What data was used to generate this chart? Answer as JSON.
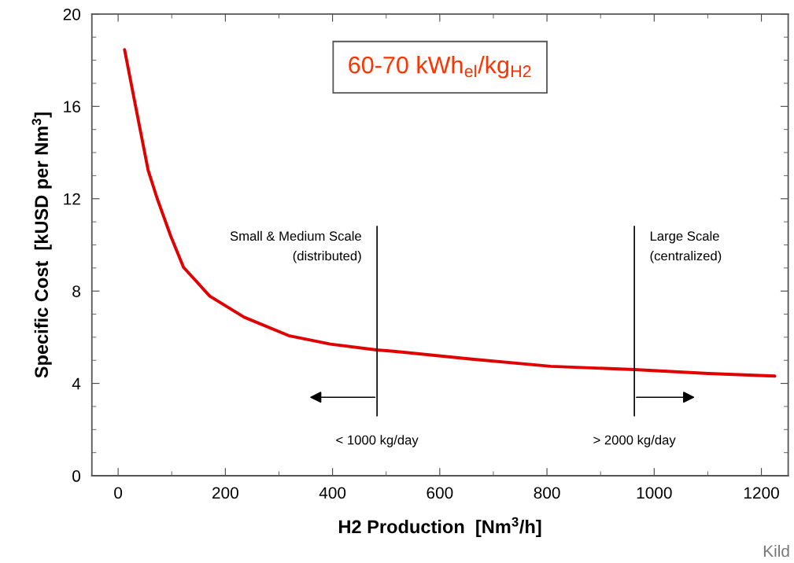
{
  "chart_data": {
    "type": "line",
    "xlabel": "H2 Production  [Nm$^{3}$/h]",
    "ylabel": "Specific Cost  [kUSD per Nm$^{3}$]",
    "x": [
      12,
      34,
      56,
      73,
      98,
      122,
      171,
      235,
      318,
      396,
      482,
      514,
      660,
      807,
      963,
      1101,
      1225
    ],
    "series": [
      {
        "color": "#e00000",
        "values": [
          18.46,
          15.84,
          13.23,
          12.0,
          10.39,
          9.03,
          7.78,
          6.87,
          6.07,
          5.7,
          5.45,
          5.39,
          5.05,
          4.74,
          4.6,
          4.43,
          4.32
        ]
      }
    ],
    "xlim": [
      -49,
      1250
    ],
    "ylim": [
      0,
      20
    ],
    "xticks": [
      0,
      200,
      400,
      600,
      800,
      1000,
      1200
    ],
    "yticks": [
      0,
      4,
      8,
      12,
      16,
      20
    ],
    "grid": false,
    "legend": false,
    "marker": "none",
    "line_style": "solid",
    "ref_lines": [
      {
        "axis": "x",
        "value": 483,
        "label": "Small & Medium Scale\n(distributed)",
        "color": "#000000"
      },
      {
        "axis": "x",
        "value": 963,
        "label": "Large Scale\n(centralized)",
        "color": "#000000"
      }
    ],
    "annotations": [
      "60-70 kWh$_{el}$/kg$_{H2}$",
      "< 1000 kg/day",
      "> 2000 kg/day",
      "Kild"
    ]
  }
}
